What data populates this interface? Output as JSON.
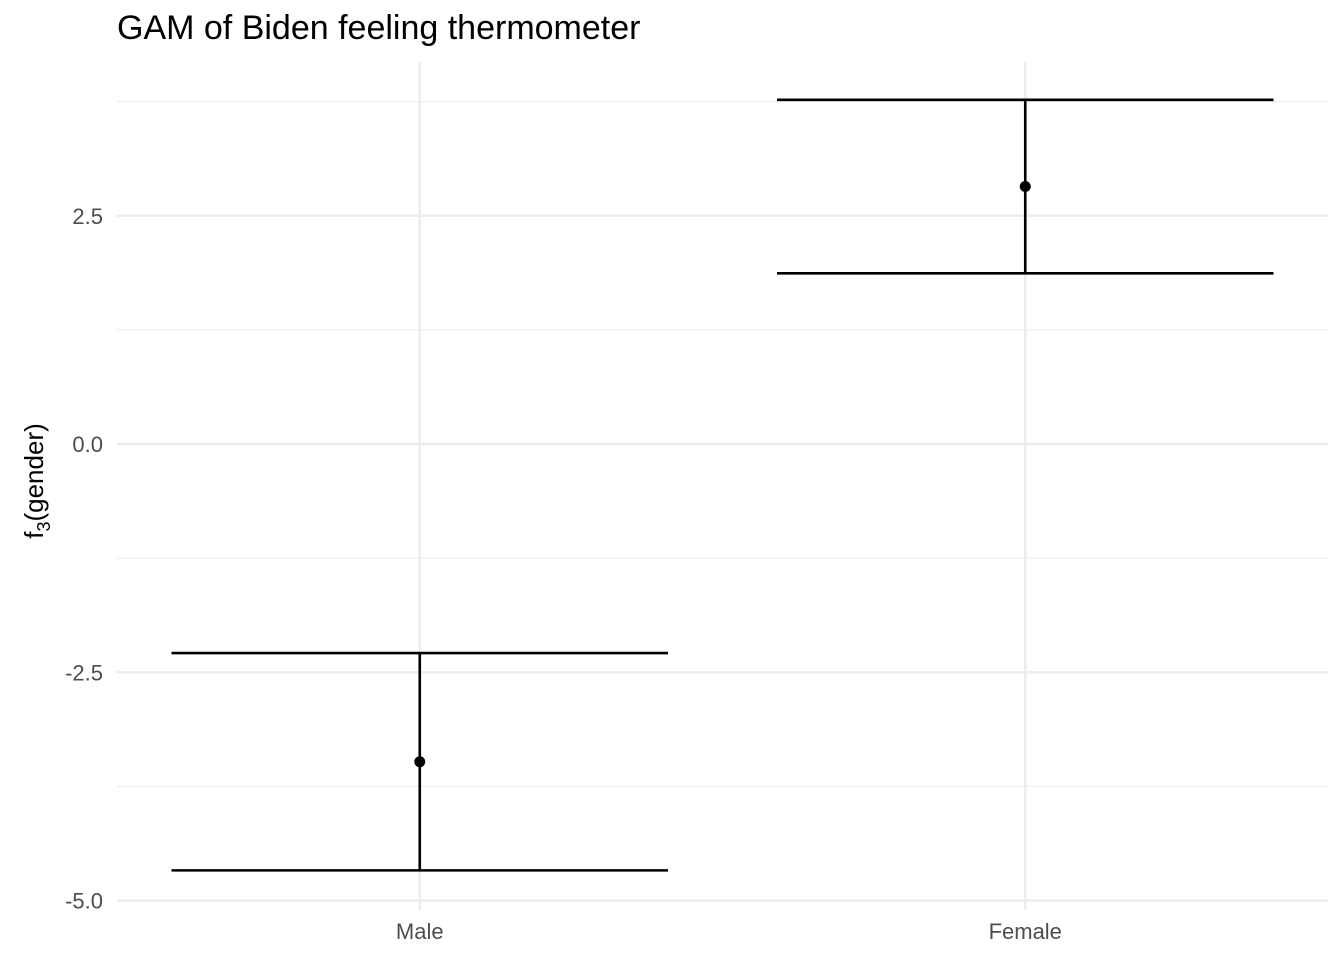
{
  "chart_data": {
    "type": "errorbar",
    "title": "GAM of Biden feeling thermometer",
    "xlabel": "",
    "ylabel": {
      "base": "f",
      "subscript": "3",
      "rest": "(gender)"
    },
    "categories": [
      "Male",
      "Female"
    ],
    "estimates": [
      -3.48,
      2.82
    ],
    "lower": [
      -4.67,
      1.87
    ],
    "upper": [
      -2.29,
      3.77
    ],
    "ylim": [
      -5.0,
      3.77
    ],
    "y_ticks": [
      -5.0,
      -2.5,
      0.0,
      2.5
    ],
    "y_tick_labels": [
      "-5.0",
      "-2.5",
      "0.0",
      "2.5"
    ],
    "grid": true
  }
}
